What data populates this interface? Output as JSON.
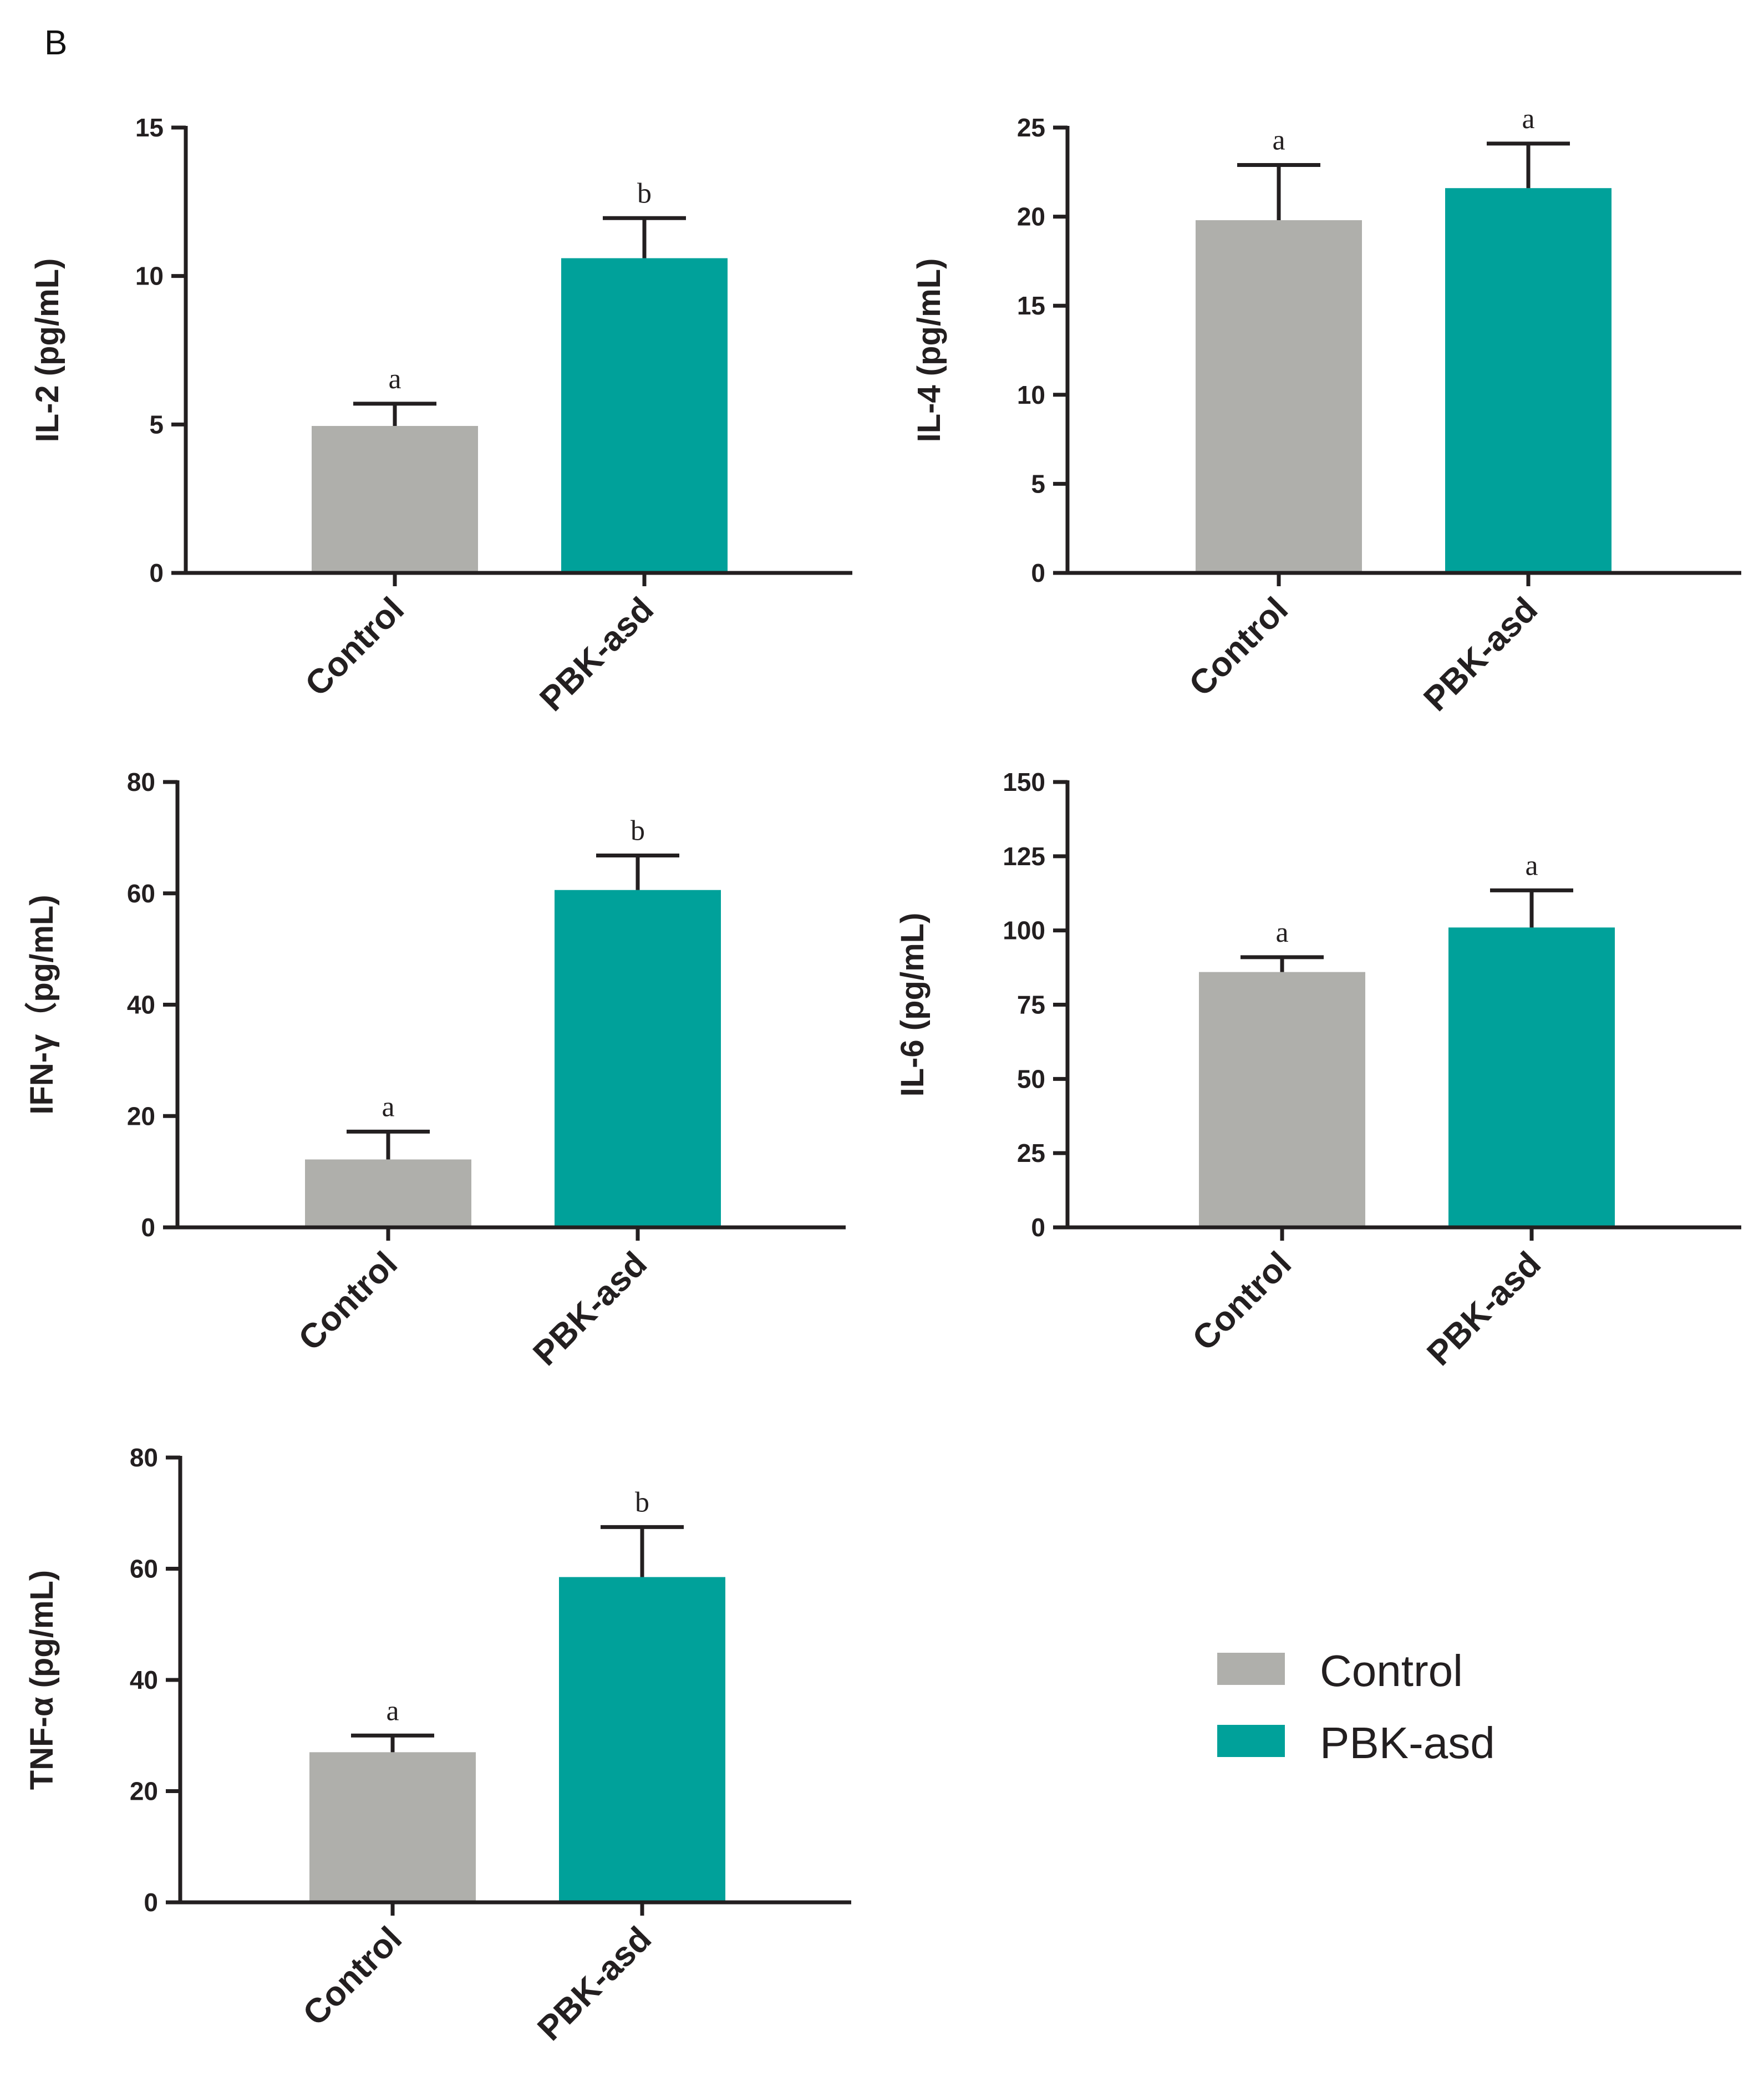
{
  "panel_label": "B",
  "legend": {
    "items": [
      {
        "label": "Control",
        "color": "#afafab"
      },
      {
        "label": "PBK-asd",
        "color": "#00a19a"
      }
    ]
  },
  "chart_data": [
    {
      "type": "bar",
      "ylabel": "IL-2 (pg/mL)",
      "categories": [
        "Control",
        "PBK-asd"
      ],
      "values": [
        4.95,
        10.6
      ],
      "errors": [
        0.75,
        1.35
      ],
      "significance": [
        "a",
        "b"
      ],
      "colors": [
        "#afafab",
        "#00a19a"
      ],
      "ylim": [
        0,
        15
      ],
      "yticks": [
        0,
        5,
        10,
        15
      ],
      "ytick_labels": [
        "0",
        "5",
        "10",
        "15"
      ]
    },
    {
      "type": "bar",
      "ylabel": "IL-4 (pg/mL)",
      "categories": [
        "Control",
        "PBK-asd"
      ],
      "values": [
        19.8,
        21.6
      ],
      "errors": [
        3.1,
        2.5
      ],
      "significance": [
        "a",
        "a"
      ],
      "colors": [
        "#afafab",
        "#00a19a"
      ],
      "ylim": [
        0,
        25
      ],
      "yticks": [
        0,
        5,
        10,
        15,
        20,
        25
      ],
      "ytick_labels": [
        "0",
        "5",
        "10",
        "15",
        "20",
        "25"
      ]
    },
    {
      "type": "bar",
      "ylabel": "IFN-γ（pg/mL)",
      "categories": [
        "Control",
        "PBK-asd"
      ],
      "values": [
        12.2,
        60.6
      ],
      "errors": [
        5.0,
        6.2
      ],
      "significance": [
        "a",
        "b"
      ],
      "colors": [
        "#afafab",
        "#00a19a"
      ],
      "ylim": [
        0,
        80
      ],
      "yticks": [
        0,
        20,
        40,
        60,
        80
      ],
      "ytick_labels": [
        "0",
        "20",
        "40",
        "60",
        "80"
      ]
    },
    {
      "type": "bar",
      "ylabel": "IL-6 (pg/mL)",
      "categories": [
        "Control",
        "PBK-asd"
      ],
      "values": [
        86,
        101
      ],
      "errors": [
        5,
        12.5
      ],
      "significance": [
        "a",
        "a"
      ],
      "colors": [
        "#afafab",
        "#00a19a"
      ],
      "ylim": [
        0,
        150
      ],
      "yticks": [
        0,
        25,
        50,
        75,
        100,
        125,
        150
      ],
      "ytick_labels": [
        "0",
        "25",
        "50",
        "75",
        "100",
        "125",
        "150"
      ]
    },
    {
      "type": "bar",
      "ylabel": "TNF-α (pg/mL)",
      "categories": [
        "Control",
        "PBK-asd"
      ],
      "values": [
        27.0,
        58.5
      ],
      "errors": [
        3.0,
        9.0
      ],
      "significance": [
        "a",
        "b"
      ],
      "colors": [
        "#afafab",
        "#00a19a"
      ],
      "ylim": [
        0,
        80
      ],
      "yticks": [
        0,
        20,
        40,
        60,
        80
      ],
      "ytick_labels": [
        "0",
        "20",
        "40",
        "60",
        "80"
      ]
    }
  ]
}
